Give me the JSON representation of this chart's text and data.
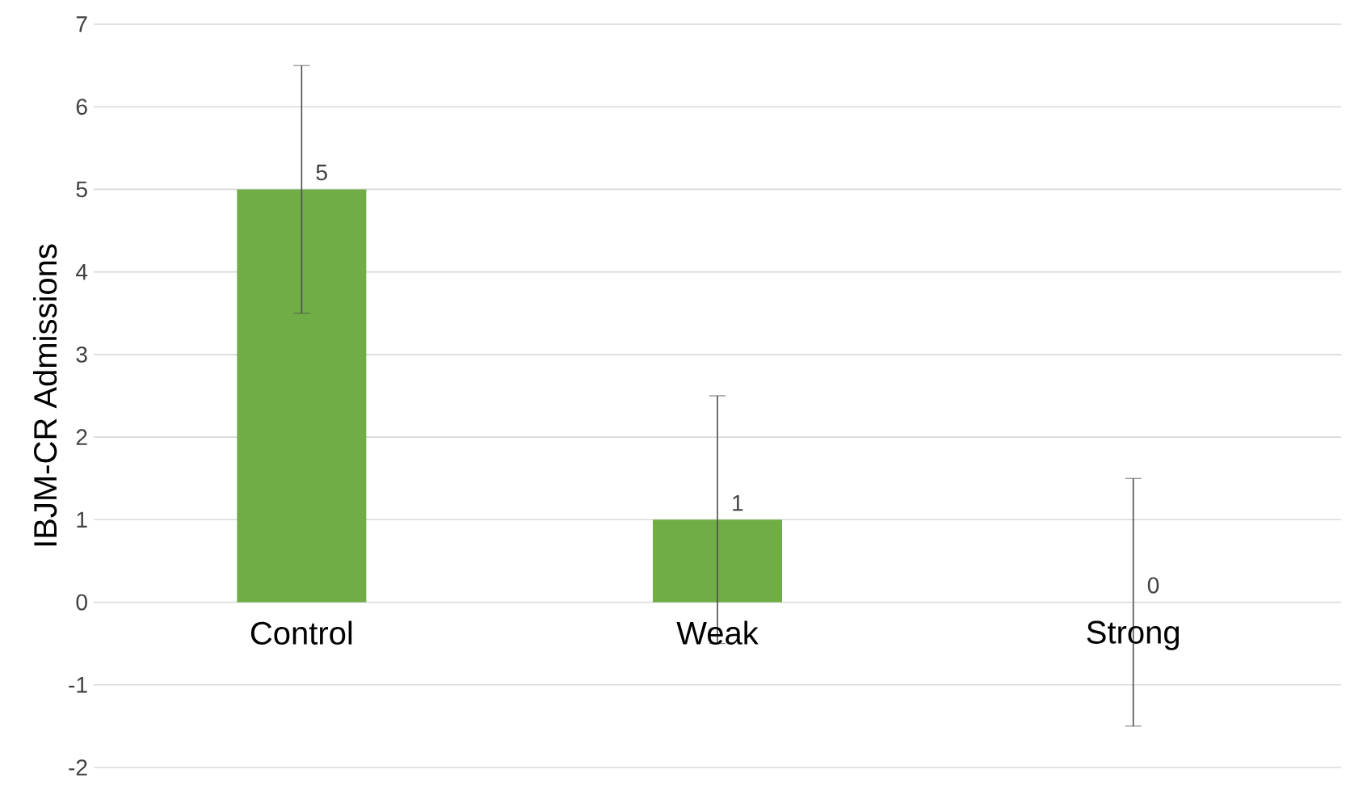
{
  "chart_data": {
    "type": "bar",
    "ylabel": "IBJM-CR Admissions",
    "categories": [
      "Control",
      "Weak",
      "Strong"
    ],
    "values": [
      5,
      1,
      0
    ],
    "errors": [
      1.5,
      1.5,
      1.5
    ],
    "color": "#70ad47",
    "ylim": [
      -2,
      7
    ],
    "yticks": [
      -2,
      -1,
      0,
      1,
      2,
      3,
      4,
      5,
      6,
      7
    ],
    "grid": "y",
    "data_labels": true
  }
}
